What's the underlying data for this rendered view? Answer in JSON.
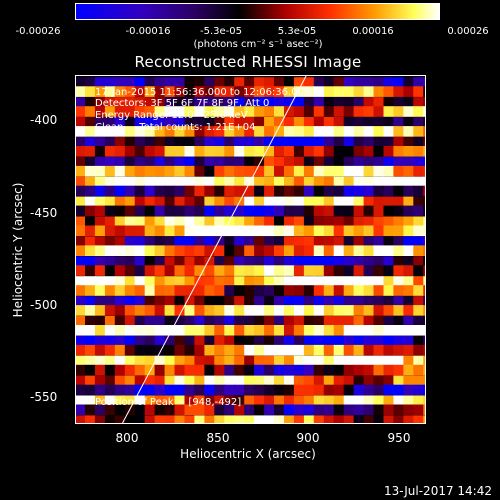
{
  "colorbar": {
    "ticks": [
      "-0.00026",
      "-0.00016",
      "-5.3e-05",
      "5.3e-05",
      "0.00016",
      "0.00026"
    ],
    "units": "(photons cm⁻² s⁻¹ asec⁻²)",
    "colors": [
      "#0000ff",
      "#3300c0",
      "#2a0060",
      "#000000",
      "#b00000",
      "#ff3000",
      "#ff9900",
      "#ffff55",
      "#ffffff"
    ]
  },
  "annotations": {
    "line1": "17-Jan-2015 11:56:36.000 to 12:06:36.000",
    "line2": "Detectors: 3F 5F 6F 7F 8F 9F, Att 0",
    "line3": "Energy Range: 12.0 - 25.0 keV",
    "line4": "Clean     Total counts: 1.21E+04",
    "peak": "Position of Peak = [948,-492]"
  },
  "timestamp": "13-Jul-2017 14:42",
  "chart_data": {
    "type": "heatmap",
    "title": "Reconstructed RHESSI Image",
    "xlabel": "Heliocentric X (arcsec)",
    "ylabel": "Heliocentric Y (arcsec)",
    "xlim": [
      771,
      965
    ],
    "ylim": [
      -566,
      -373
    ],
    "xticks": [
      "800",
      "850",
      "900",
      "950"
    ],
    "yticks": [
      "-400",
      "-450",
      "-500",
      "-550"
    ],
    "xtick_values": [
      800,
      850,
      900,
      950
    ],
    "ytick_values": [
      -400,
      -450,
      -500,
      -550
    ],
    "value_range": [
      -0.00026,
      0.00026
    ],
    "limb_line": [
      [
        797,
        -566
      ],
      [
        899,
        -373
      ]
    ],
    "peak_position": [
      948,
      -492
    ],
    "bands": [
      {
        "y": -377,
        "level": -0.3
      },
      {
        "y": -382,
        "level": 0.4
      },
      {
        "y": -388,
        "level": -0.5
      },
      {
        "y": -393,
        "level": 0.6
      },
      {
        "y": -399,
        "level": -0.2
      },
      {
        "y": -404,
        "level": 0.7
      },
      {
        "y": -410,
        "level": -0.6
      },
      {
        "y": -415,
        "level": 0.3
      },
      {
        "y": -421,
        "level": -0.4
      },
      {
        "y": -426,
        "level": 0.5
      },
      {
        "y": -432,
        "level": 0.9
      },
      {
        "y": -437,
        "level": -0.3
      },
      {
        "y": -443,
        "level": 0.6
      },
      {
        "y": -448,
        "level": -0.5
      },
      {
        "y": -454,
        "level": 0.4
      },
      {
        "y": -459,
        "level": 0.8
      },
      {
        "y": -465,
        "level": -0.4
      },
      {
        "y": -470,
        "level": 0.5
      },
      {
        "y": -476,
        "level": -0.6
      },
      {
        "y": -481,
        "level": 0.3
      },
      {
        "y": -487,
        "level": 0.9
      },
      {
        "y": -492,
        "level": 0.2
      },
      {
        "y": -498,
        "level": -0.5
      },
      {
        "y": -503,
        "level": 0.7
      },
      {
        "y": -509,
        "level": -0.3
      },
      {
        "y": -514,
        "level": 0.8
      },
      {
        "y": -520,
        "level": -0.6
      },
      {
        "y": -525,
        "level": 0.4
      },
      {
        "y": -531,
        "level": 0.7
      },
      {
        "y": -536,
        "level": -0.2
      },
      {
        "y": -542,
        "level": 0.6
      },
      {
        "y": -547,
        "level": -0.5
      },
      {
        "y": -553,
        "level": 0.5
      },
      {
        "y": -558,
        "level": -0.3
      },
      {
        "y": -564,
        "level": 0.4
      }
    ]
  }
}
